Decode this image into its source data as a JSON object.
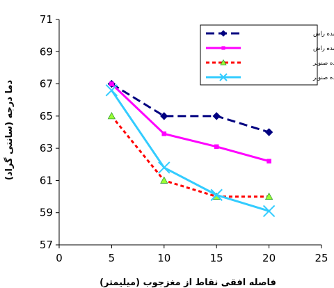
{
  "chart_data": {
    "type": "line",
    "title": "",
    "xlabel": "فاصله افقی نقاط از مغزجوب (میلیمتر)",
    "ylabel": "دما درجه (سانتی گراد)",
    "xlim": [
      0,
      25
    ],
    "ylim": [
      57,
      71
    ],
    "xticks": [
      "0",
      "5",
      "10",
      "15",
      "20",
      "25"
    ],
    "yticks": [
      "57",
      "59",
      "61",
      "63",
      "65",
      "67",
      "69",
      "71"
    ],
    "grid": false,
    "legend_position": "top-right",
    "series": [
      {
        "name": "حرارت اندازه گیری شده راش",
        "color": "#000080",
        "dash": "dashed",
        "marker": "diamond",
        "x": [
          5,
          10,
          15,
          20
        ],
        "y": [
          67,
          65,
          65,
          64
        ]
      },
      {
        "name": "حرارت پیش بینی شده راش",
        "color": "#ff00ff",
        "dash": "solid",
        "marker": "square",
        "x": [
          5,
          10,
          15,
          20
        ],
        "y": [
          67,
          63.9,
          63.1,
          62.2
        ]
      },
      {
        "name": "حرارت اندازه گیری شده صنوبر",
        "color": "#ff0000",
        "dash": "dotted",
        "marker": "triangle",
        "marker_fill": "#99ff33",
        "x": [
          5,
          10,
          15,
          20
        ],
        "y": [
          65,
          61,
          60,
          60
        ]
      },
      {
        "name": "حرارت پیش بینی شده صنوبر",
        "color": "#33ccff",
        "dash": "solid",
        "marker": "x",
        "x": [
          5,
          10,
          15,
          20
        ],
        "y": [
          66.6,
          61.8,
          60.1,
          59.1
        ]
      }
    ]
  }
}
